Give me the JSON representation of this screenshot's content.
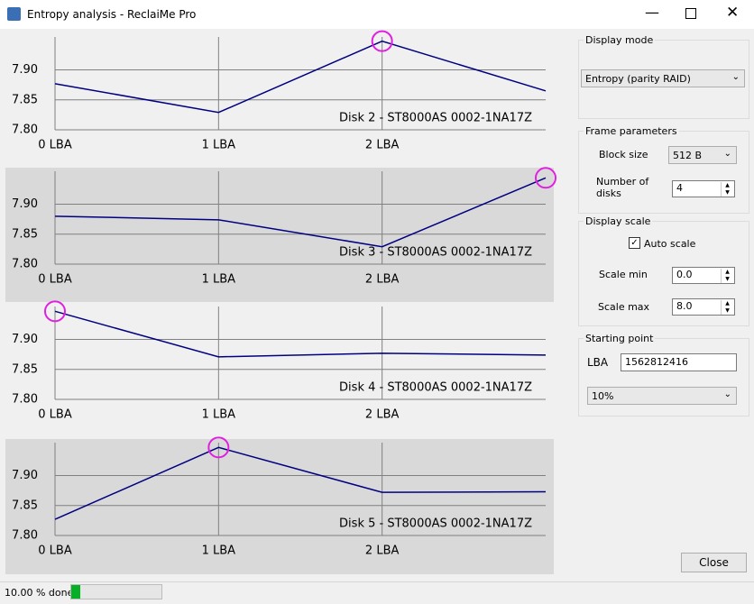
{
  "window": {
    "title": "Entropy analysis - ReclaiMe Pro"
  },
  "chart_data": [
    {
      "type": "line",
      "annotation": "Disk 2 - ST8000AS 0002-1NA17Z",
      "categories": [
        "0 LBA",
        "1 LBA",
        "2 LBA",
        null
      ],
      "values": [
        7.877,
        7.829,
        7.948,
        7.865
      ],
      "color": "#000080",
      "ylim": [
        7.8,
        7.955
      ],
      "yticks": [
        {
          "value": 7.8,
          "label": "7.80"
        },
        7.85,
        {
          "value": 7.9,
          "label": "7.90"
        }
      ]
    },
    {
      "type": "line",
      "annotation": "Disk 3 - ST8000AS 0002-1NA17Z",
      "categories": [
        "0 LBA",
        "1 LBA",
        "2 LBA",
        null
      ],
      "values": [
        7.88,
        7.874,
        7.829,
        7.944
      ],
      "color": "#000080",
      "ylim": [
        7.8,
        7.955
      ],
      "yticks": [
        {
          "value": 7.8,
          "label": "7.80"
        },
        7.85,
        {
          "value": 7.9,
          "label": "7.90"
        }
      ]
    },
    {
      "type": "line",
      "annotation": "Disk 4 - ST8000AS 0002-1NA17Z",
      "categories": [
        "0 LBA",
        "1 LBA",
        "2 LBA",
        null
      ],
      "values": [
        7.947,
        7.871,
        7.877,
        7.874
      ],
      "color": "#000080",
      "ylim": [
        7.8,
        7.955
      ],
      "yticks": [
        {
          "value": 7.8,
          "label": "7.80"
        },
        7.85,
        {
          "value": 7.9,
          "label": "7.90"
        }
      ]
    },
    {
      "type": "line",
      "annotation": "Disk 5 - ST8000AS 0002-1NA17Z",
      "categories": [
        "0 LBA",
        "1 LBA",
        "2 LBA",
        null
      ],
      "values": [
        7.827,
        7.947,
        7.872,
        7.873
      ],
      "color": "#000080",
      "ylim": [
        7.8,
        7.955
      ],
      "yticks": [
        {
          "value": 7.8,
          "label": "7.80"
        },
        7.85,
        {
          "value": 7.9,
          "label": "7.90"
        }
      ]
    }
  ],
  "controls": {
    "display_mode": {
      "label": "Display mode",
      "value": "Entropy (parity RAID)"
    },
    "frame": {
      "label": "Frame parameters",
      "block_size_label": "Block size",
      "block_size": "512 B",
      "disks_label": "Number of disks",
      "disks": "4"
    },
    "scale": {
      "label": "Display scale",
      "auto_scale": "Auto scale",
      "min_label": "Scale min",
      "min": "0.0",
      "max_label": "Scale max",
      "max": "8.0"
    },
    "start": {
      "label": "Starting point",
      "lba_label": "LBA",
      "lba": "1562812416",
      "percent": "10%"
    },
    "close": "Close"
  },
  "status": {
    "text": "10.00 % done",
    "progress": 10
  }
}
